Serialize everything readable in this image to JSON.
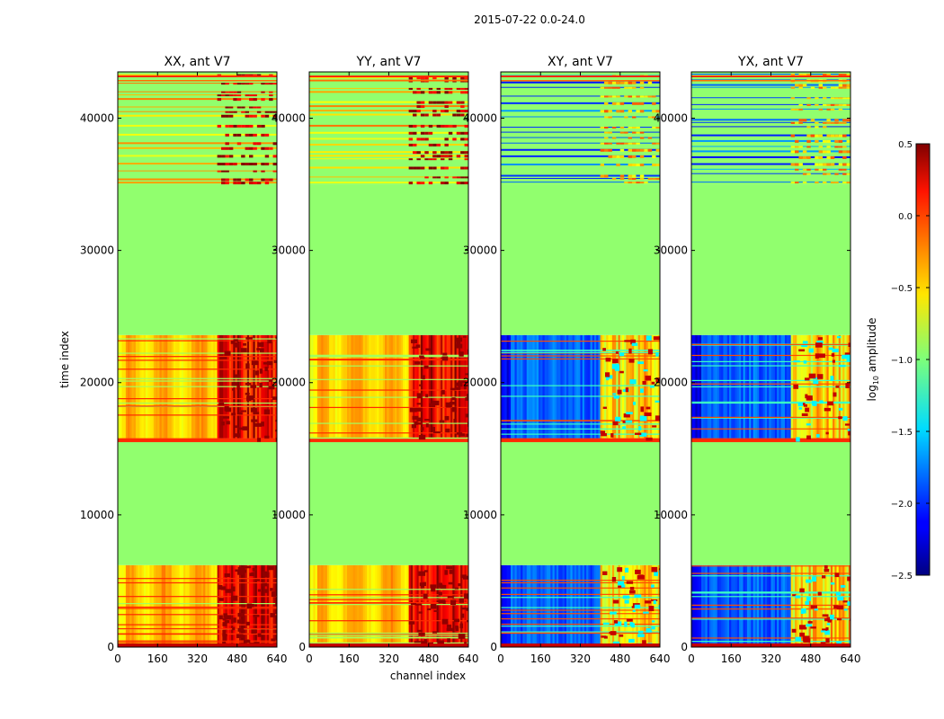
{
  "chart_data": {
    "type": "heatmap",
    "suptitle": "2015-07-22 0.0-24.0",
    "xlabel": "channel index",
    "ylabel": "time index",
    "xlim": [
      0,
      640
    ],
    "ylim": [
      0,
      43500
    ],
    "xticks": [
      "0",
      "160",
      "320",
      "480",
      "640"
    ],
    "yticks": [
      "0",
      "10000",
      "20000",
      "30000",
      "40000"
    ],
    "colorbar": {
      "label": "log10 amplitude",
      "label_base": "log",
      "label_sub": "10",
      "label_rest": " amplitude",
      "range": [
        -2.5,
        0.5
      ],
      "ticks": [
        "0.5",
        "0.0",
        "−0.5",
        "−1.0",
        "−1.5",
        "−2.0",
        "−2.5"
      ],
      "colormap": "jet"
    },
    "panels": [
      {
        "title": "XX, ant V7",
        "kind": "parallel"
      },
      {
        "title": "YY, ant V7",
        "kind": "parallel"
      },
      {
        "title": "XY, ant V7",
        "kind": "cross"
      },
      {
        "title": "YX, ant V7",
        "kind": "cross"
      }
    ],
    "blocks": [
      {
        "from": 0,
        "to": 6200,
        "state": "data"
      },
      {
        "from": 6200,
        "to": 15500,
        "state": "masked"
      },
      {
        "from": 15500,
        "to": 15800,
        "state": "flag"
      },
      {
        "from": 15800,
        "to": 23600,
        "state": "data"
      },
      {
        "from": 23600,
        "to": 35000,
        "state": "masked"
      },
      {
        "from": 35000,
        "to": 43500,
        "state": "sparse"
      }
    ],
    "masked_value": -0.95,
    "parallel_level": -0.45,
    "cross_level": -1.85,
    "rfi_channel_range": [
      400,
      640
    ],
    "rfi_level_parallel": 0.2,
    "rfi_level_cross": -0.5
  }
}
